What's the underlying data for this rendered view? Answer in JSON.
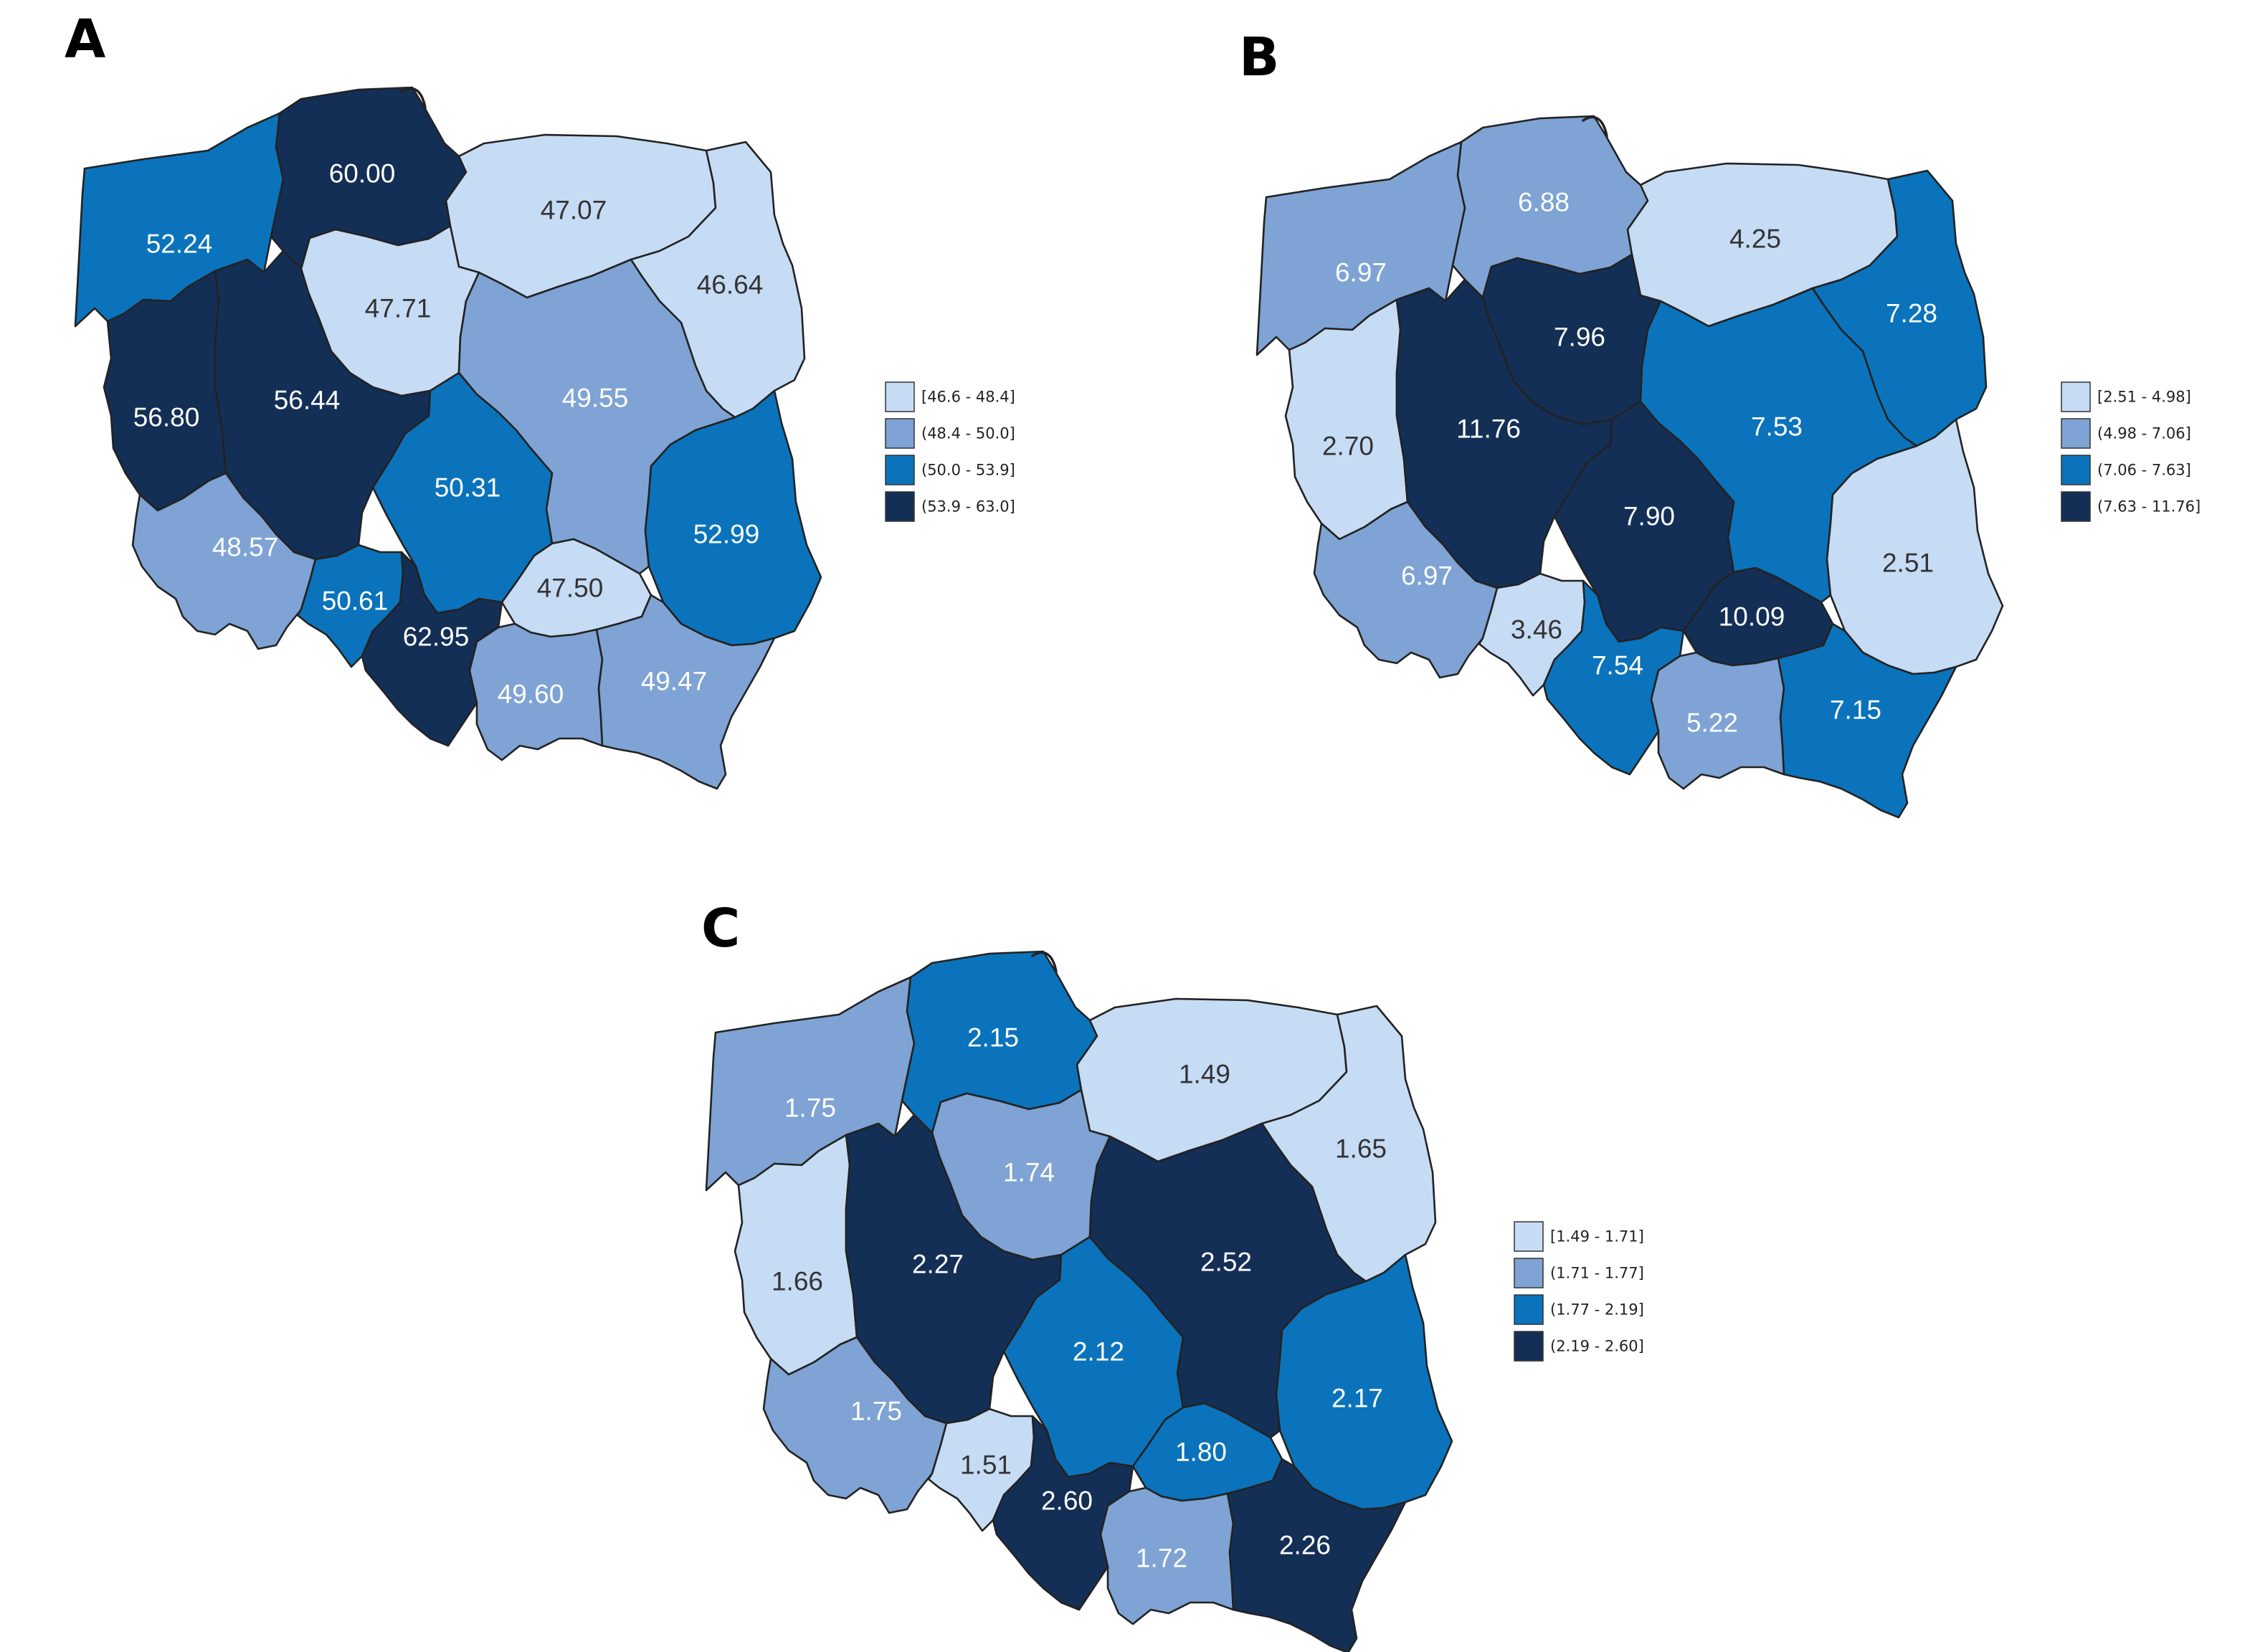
{
  "colors": {
    "bin1": "#c6dbf4",
    "bin2": "#7ea3d4",
    "bin3": "#0a73bb",
    "bin4": "#142f56",
    "stroke": "#222222",
    "label_dark": "#333333",
    "label_light": "#ffffff"
  },
  "panels": [
    {
      "letter": "A",
      "legend": [
        "[46.6 - 48.4]",
        "(48.4 - 50.0]",
        "(50.0 - 53.9]",
        "(53.9 - 63.0]"
      ],
      "regions": [
        {
          "name": "zachodniopomorskie",
          "label": "52.24",
          "bin": 3
        },
        {
          "name": "pomorskie",
          "label": "60.00",
          "bin": 4
        },
        {
          "name": "warminsko-mazurskie",
          "label": "47.07",
          "bin": 1
        },
        {
          "name": "podlaskie",
          "label": "46.64",
          "bin": 1
        },
        {
          "name": "kujawsko-pomorskie",
          "label": "47.71",
          "bin": 1
        },
        {
          "name": "lubuskie",
          "label": "56.80",
          "bin": 4
        },
        {
          "name": "wielkopolskie",
          "label": "56.44",
          "bin": 4
        },
        {
          "name": "mazowieckie",
          "label": "49.55",
          "bin": 2
        },
        {
          "name": "lodzkie",
          "label": "50.31",
          "bin": 3
        },
        {
          "name": "lubelskie",
          "label": "52.99",
          "bin": 3
        },
        {
          "name": "dolnoslaskie",
          "label": "48.57",
          "bin": 2
        },
        {
          "name": "opolskie",
          "label": "50.61",
          "bin": 3
        },
        {
          "name": "slaskie",
          "label": "62.95",
          "bin": 4
        },
        {
          "name": "swietokrzyskie",
          "label": "47.50",
          "bin": 1
        },
        {
          "name": "malopolskie",
          "label": "49.60",
          "bin": 2
        },
        {
          "name": "podkarpackie",
          "label": "49.47",
          "bin": 2
        }
      ]
    },
    {
      "letter": "B",
      "legend": [
        "[2.51 - 4.98]",
        "(4.98 - 7.06]",
        "(7.06 - 7.63]",
        "(7.63 - 11.76]"
      ],
      "regions": [
        {
          "name": "zachodniopomorskie",
          "label": "6.97",
          "bin": 2
        },
        {
          "name": "pomorskie",
          "label": "6.88",
          "bin": 2
        },
        {
          "name": "warminsko-mazurskie",
          "label": "4.25",
          "bin": 1
        },
        {
          "name": "podlaskie",
          "label": "7.28",
          "bin": 3
        },
        {
          "name": "kujawsko-pomorskie",
          "label": "7.96",
          "bin": 4
        },
        {
          "name": "lubuskie",
          "label": "2.70",
          "bin": 1
        },
        {
          "name": "wielkopolskie",
          "label": "11.76",
          "bin": 4
        },
        {
          "name": "mazowieckie",
          "label": "7.53",
          "bin": 3
        },
        {
          "name": "lodzkie",
          "label": "7.90",
          "bin": 4
        },
        {
          "name": "lubelskie",
          "label": "2.51",
          "bin": 1
        },
        {
          "name": "dolnoslaskie",
          "label": "6.97",
          "bin": 2
        },
        {
          "name": "opolskie",
          "label": "3.46",
          "bin": 1
        },
        {
          "name": "slaskie",
          "label": "7.54",
          "bin": 3
        },
        {
          "name": "swietokrzyskie",
          "label": "10.09",
          "bin": 4
        },
        {
          "name": "malopolskie",
          "label": "5.22",
          "bin": 2
        },
        {
          "name": "podkarpackie",
          "label": "7.15",
          "bin": 3
        }
      ]
    },
    {
      "letter": "C",
      "legend": [
        "[1.49 - 1.71]",
        "(1.71 - 1.77]",
        "(1.77 - 2.19]",
        "(2.19 - 2.60]"
      ],
      "regions": [
        {
          "name": "zachodniopomorskie",
          "label": "1.75",
          "bin": 2
        },
        {
          "name": "pomorskie",
          "label": "2.15",
          "bin": 3
        },
        {
          "name": "warminsko-mazurskie",
          "label": "1.49",
          "bin": 1
        },
        {
          "name": "podlaskie",
          "label": "1.65",
          "bin": 1
        },
        {
          "name": "kujawsko-pomorskie",
          "label": "1.74",
          "bin": 2
        },
        {
          "name": "lubuskie",
          "label": "1.66",
          "bin": 1
        },
        {
          "name": "wielkopolskie",
          "label": "2.27",
          "bin": 4
        },
        {
          "name": "mazowieckie",
          "label": "2.52",
          "bin": 4
        },
        {
          "name": "lodzkie",
          "label": "2.12",
          "bin": 3
        },
        {
          "name": "lubelskie",
          "label": "2.17",
          "bin": 3
        },
        {
          "name": "dolnoslaskie",
          "label": "1.75",
          "bin": 2
        },
        {
          "name": "opolskie",
          "label": "1.51",
          "bin": 1
        },
        {
          "name": "slaskie",
          "label": "2.60",
          "bin": 4
        },
        {
          "name": "swietokrzyskie",
          "label": "1.80",
          "bin": 3
        },
        {
          "name": "malopolskie",
          "label": "1.72",
          "bin": 2
        },
        {
          "name": "podkarpackie",
          "label": "2.26",
          "bin": 4
        }
      ]
    }
  ]
}
